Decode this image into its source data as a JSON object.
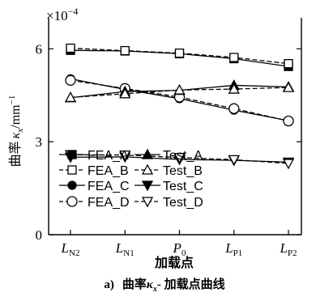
{
  "chart_data": {
    "type": "line",
    "scale_label": "×10",
    "scale_exponent": "−4",
    "ylabel_main": "曲率",
    "ylabel_symbol": "κ",
    "ylabel_sub": "x",
    "ylabel_unit": "/mm",
    "ylabel_unit_exp": "−1",
    "ylim": [
      0,
      7
    ],
    "yticks": [
      {
        "value": 0,
        "label": "0"
      },
      {
        "value": 3,
        "label": "3"
      },
      {
        "value": 6,
        "label": "6"
      }
    ],
    "categories": [
      {
        "main": "L",
        "sub": "N2",
        "italic": true
      },
      {
        "main": "L",
        "sub": "N1",
        "italic": true
      },
      {
        "main": "P",
        "sub": "0",
        "italic": true
      },
      {
        "main": "L",
        "sub": "P1",
        "italic": true
      },
      {
        "main": "L",
        "sub": "P2",
        "italic": true
      }
    ],
    "xlabel": "加载点",
    "caption_prefix": "a)",
    "caption_main": "曲率",
    "caption_symbol": "κ",
    "caption_sub": "x",
    "caption_rest": "- 加载点曲线",
    "series": [
      {
        "name": "FEA_A",
        "values": [
          5.95,
          5.93,
          5.84,
          5.68,
          5.43
        ],
        "marker": "square",
        "filled": true,
        "dash": false
      },
      {
        "name": "FEA_B",
        "values": [
          6.02,
          5.94,
          5.86,
          5.72,
          5.52
        ],
        "marker": "square",
        "filled": false,
        "dash": true
      },
      {
        "name": "FEA_C",
        "values": [
          5.03,
          4.69,
          4.39,
          4.02,
          3.68
        ],
        "marker": "circle",
        "filled": true,
        "dash": false
      },
      {
        "name": "FEA_D",
        "values": [
          4.98,
          4.72,
          4.44,
          4.07,
          3.67
        ],
        "marker": "circle",
        "filled": false,
        "dash": true
      },
      {
        "name": "Test_A",
        "values": [
          4.42,
          4.62,
          4.66,
          4.82,
          4.77
        ],
        "marker": "triangle",
        "filled": true,
        "dash": false
      },
      {
        "name": "Test_B",
        "values": [
          4.43,
          4.55,
          4.67,
          4.7,
          4.75
        ],
        "marker": "triangle",
        "filled": false,
        "dash": true
      },
      {
        "name": "Test_C",
        "values": [
          2.5,
          2.51,
          2.43,
          2.4,
          2.34
        ],
        "marker": "tri-down",
        "filled": true,
        "dash": false
      },
      {
        "name": "Test_D",
        "values": [
          2.58,
          2.57,
          2.49,
          2.42,
          2.3
        ],
        "marker": "tri-down",
        "filled": false,
        "dash": true
      }
    ],
    "legend_placement": "bottom-left",
    "grid": false
  }
}
